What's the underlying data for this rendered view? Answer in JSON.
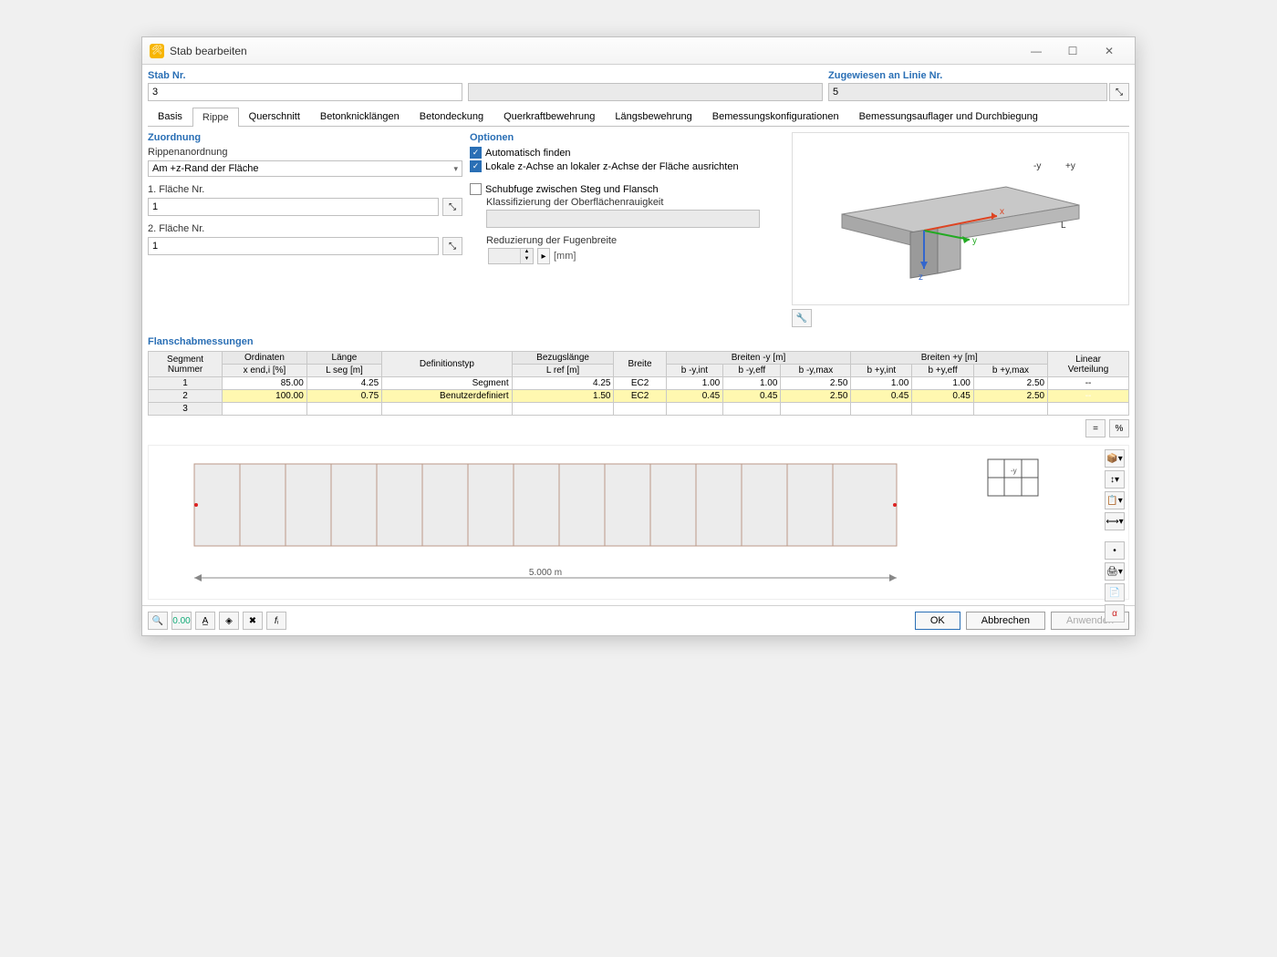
{
  "window": {
    "title": "Stab bearbeiten"
  },
  "top": {
    "stab_nr_label": "Stab Nr.",
    "stab_nr_value": "3",
    "line_label": "Zugewiesen an Linie Nr.",
    "line_value": "5"
  },
  "tabs": [
    "Basis",
    "Rippe",
    "Querschnitt",
    "Betonknicklängen",
    "Betondeckung",
    "Querkraftbewehrung",
    "Längsbewehrung",
    "Bemessungskonfigurationen",
    "Bemessungsauflager und Durchbiegung"
  ],
  "active_tab": 1,
  "zuordnung": {
    "title": "Zuordnung",
    "rippen_label": "Rippenanordnung",
    "rippen_value": "Am +z-Rand der Fläche",
    "f1_label": "1. Fläche Nr.",
    "f1_value": "1",
    "f2_label": "2. Fläche Nr.",
    "f2_value": "1"
  },
  "optionen": {
    "title": "Optionen",
    "chk1": "Automatisch finden",
    "chk2": "Lokale z-Achse an lokaler z-Achse der Fläche ausrichten",
    "chk3": "Schubfuge zwischen Steg und Flansch",
    "klass": "Klassifizierung der Oberflächenrauigkeit",
    "redu": "Reduzierung der Fugenbreite",
    "mm": "[mm]"
  },
  "flansch": {
    "title": "Flanschabmessungen",
    "headers_group": [
      "Segment Nummer",
      "Ordinaten",
      "Länge",
      "Definitionstyp",
      "Bezugslänge",
      "Breite",
      "Breiten -y [m]",
      "Breiten +y [m]",
      "Linear Verteilung"
    ],
    "h_ord": "x end,i [%]",
    "h_len": "L seg [m]",
    "h_ref": "L ref [m]",
    "h_bym": [
      "b -y,int",
      "b -y,eff",
      "b -y,max"
    ],
    "h_byp": [
      "b +y,int",
      "b +y,eff",
      "b +y,max"
    ],
    "rows": [
      {
        "n": "1",
        "ord": "85.00",
        "len": "4.25",
        "def": "Segment",
        "ref": "4.25",
        "br": "EC2",
        "bym": [
          "1.00",
          "1.00",
          "2.50"
        ],
        "byp": [
          "1.00",
          "1.00",
          "2.50"
        ],
        "lin": "--"
      },
      {
        "n": "2",
        "ord": "100.00",
        "len": "0.75",
        "def": "Benutzerdefiniert",
        "ref": "1.50",
        "br": "EC2",
        "bym": [
          "0.45",
          "0.45",
          "2.50"
        ],
        "byp": [
          "0.45",
          "0.45",
          "2.50"
        ],
        "lin": "--"
      },
      {
        "n": "3",
        "ord": "",
        "len": "",
        "def": "",
        "ref": "",
        "br": "",
        "bym": [
          "",
          "",
          ""
        ],
        "byp": [
          "",
          "",
          ""
        ],
        "lin": ""
      }
    ]
  },
  "geom_dim": "5.000 m",
  "buttons": {
    "ok": "OK",
    "cancel": "Abbrechen",
    "apply": "Anwenden"
  },
  "preview_labels": {
    "my": "-y",
    "py": "+y",
    "x": "x",
    "y": "y",
    "z": "z",
    "L": "L"
  }
}
